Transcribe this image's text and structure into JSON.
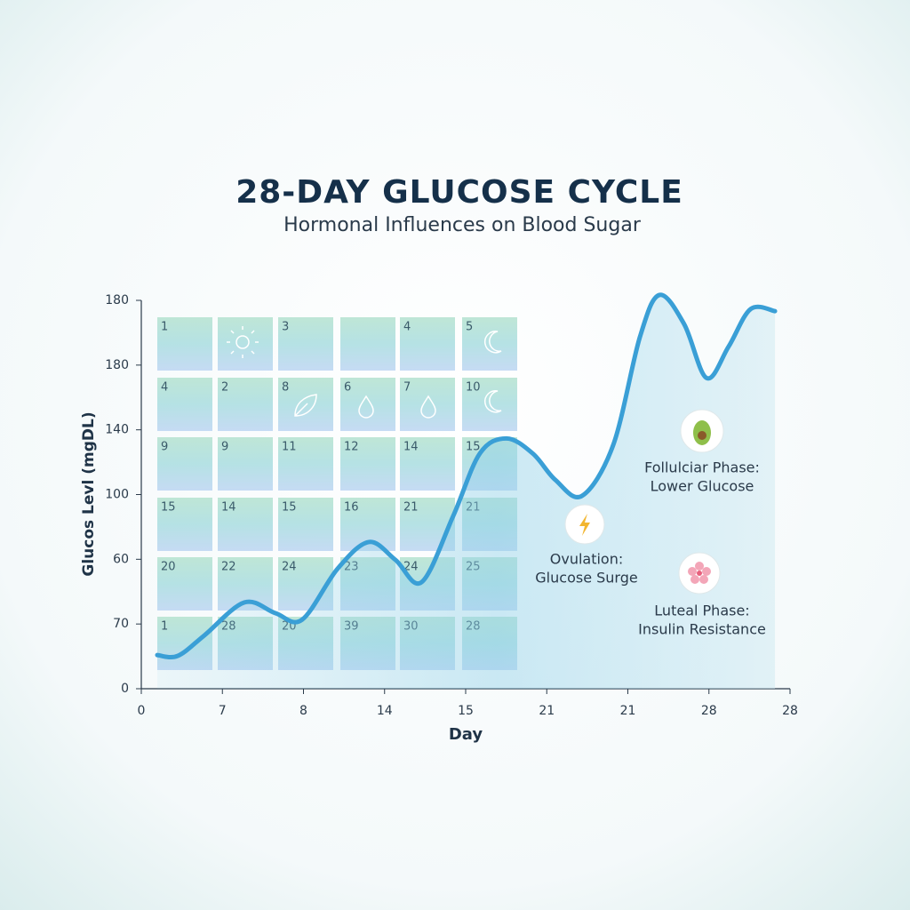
{
  "chart_data": {
    "type": "line",
    "title": "28-DAY GLUCOSE CYCLE",
    "subtitle": "Hormonal Influences on Blood Sugar",
    "x_label": "Day",
    "y_label": "Glucos Levl (mgDL)",
    "xlim": [
      0,
      28
    ],
    "ylim": [
      0,
      180
    ],
    "xticks": [
      0,
      {
        "value": 3.5,
        "label": "7"
      },
      {
        "value": 7,
        "label": "8"
      },
      {
        "value": 10.5,
        "label": "14"
      },
      {
        "value": 14,
        "label": "15"
      },
      {
        "value": 17.5,
        "label": "21"
      },
      21,
      {
        "value": 24.5,
        "label": "28"
      },
      28
    ],
    "yticks": [
      0,
      {
        "value": 30,
        "label": "70"
      },
      60,
      {
        "value": 90,
        "label": "100"
      },
      {
        "value": 120,
        "label": "140"
      },
      {
        "value": 150,
        "label": "180"
      },
      180
    ],
    "series": [
      {
        "color": "#3a9fd6",
        "x": [
          0.69,
          1.57,
          2.72,
          4.45,
          5.79,
          6.94,
          8.47,
          9.82,
          10.97,
          12.1,
          13.46,
          14.61,
          15.76,
          16.9,
          17.87,
          19.02,
          20.37,
          21.52,
          22.36,
          23.43,
          24.4,
          25.35,
          26.3,
          27.35
        ],
        "values": [
          15.6,
          15.2,
          24.7,
          40,
          35,
          32,
          55.6,
          68,
          59.7,
          49.4,
          80,
          109,
          116,
          109,
          96.8,
          89.4,
          113,
          163,
          182.5,
          169,
          144,
          158.6,
          176,
          175
        ]
      }
    ],
    "calendar": [
      [
        "1",
        null,
        "3",
        null,
        "4",
        "5"
      ],
      [
        "4",
        "2",
        "8",
        "6",
        "7",
        "10"
      ],
      [
        "9",
        "9",
        "11",
        "12",
        "14",
        "15"
      ],
      [
        "15",
        "14",
        "15",
        "16",
        "21",
        "21"
      ],
      [
        "20",
        "22",
        "24",
        "23",
        "24",
        "25"
      ],
      [
        "1",
        "28",
        "20",
        "39",
        "30",
        "28"
      ]
    ],
    "annotations": [
      {
        "lines": [
          "Follulciar Phase:",
          "Lower Glucose"
        ]
      },
      {
        "lines": [
          "Ovulation:",
          "Glucose Surge"
        ]
      },
      {
        "lines": [
          "Luteal Phase:",
          "Insulin Resistance"
        ]
      }
    ]
  }
}
